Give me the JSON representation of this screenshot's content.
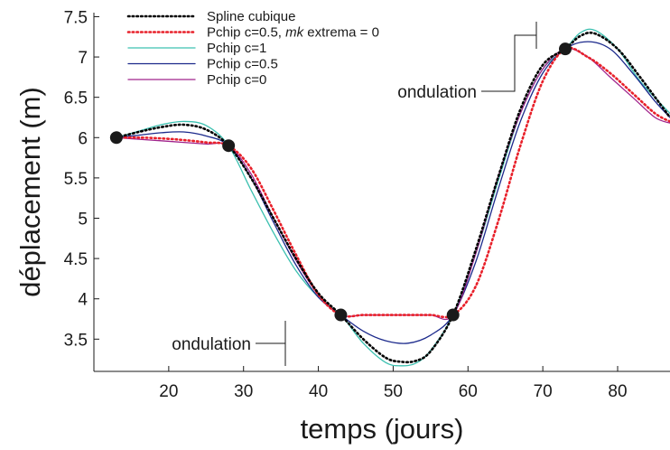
{
  "chart_data": {
    "type": "line",
    "xlabel": "temps (jours)",
    "ylabel": "déplacement (m)",
    "xlim": [
      10,
      87
    ],
    "ylim": [
      3.1,
      7.55
    ],
    "xticks": [
      20,
      30,
      40,
      50,
      60,
      70,
      80
    ],
    "yticks": [
      3.5,
      4,
      4.5,
      5,
      5.5,
      6,
      6.5,
      7,
      7.5
    ],
    "grid": false,
    "legend_position": "top-left",
    "colors": {
      "spline": "#000000",
      "pchip_extrema": "#e8202a",
      "pchip_c1": "#3cc0b0",
      "pchip_c05": "#1c2a8c",
      "pchip_c0": "#a0238c"
    },
    "points": {
      "x": [
        13,
        28,
        43,
        58,
        73
      ],
      "y": [
        6.0,
        5.9,
        3.8,
        3.8,
        7.1
      ]
    },
    "series": [
      {
        "name": "Spline cubique",
        "color": "#000000",
        "dash": "dotted",
        "x": [
          13,
          16,
          19,
          22,
          25,
          28,
          31,
          34,
          37,
          40,
          43,
          46,
          49,
          51,
          53,
          55,
          58,
          61,
          64,
          67,
          70,
          73,
          75,
          77,
          80,
          83,
          87
        ],
        "y": [
          6.0,
          6.07,
          6.13,
          6.16,
          6.1,
          5.9,
          5.5,
          5.0,
          4.5,
          4.07,
          3.8,
          3.5,
          3.27,
          3.22,
          3.23,
          3.35,
          3.8,
          4.6,
          5.5,
          6.35,
          6.9,
          7.1,
          7.26,
          7.29,
          7.1,
          6.75,
          6.25
        ]
      },
      {
        "name": "Pchip c=0.5, m_k extrema = 0",
        "color": "#e8202a",
        "dash": "dotted",
        "x": [
          13,
          16,
          19,
          22,
          25,
          28,
          31,
          34,
          37,
          40,
          43,
          46,
          49,
          52,
          55,
          58,
          61,
          64,
          67,
          70,
          73,
          76,
          79,
          82,
          85,
          87
        ],
        "y": [
          6.0,
          6.0,
          5.99,
          5.97,
          5.94,
          5.9,
          5.62,
          5.1,
          4.55,
          4.05,
          3.8,
          3.8,
          3.8,
          3.8,
          3.8,
          3.8,
          4.15,
          4.95,
          5.9,
          6.7,
          7.1,
          7.0,
          6.8,
          6.55,
          6.3,
          6.2
        ]
      },
      {
        "name": "Pchip c=1",
        "color": "#3cc0b0",
        "dash": "solid",
        "x": [
          13,
          16,
          19,
          22,
          25,
          28,
          31,
          34,
          37,
          40,
          43,
          46,
          49,
          51,
          53,
          55,
          58,
          61,
          64,
          67,
          70,
          73,
          75,
          77,
          80,
          83,
          87
        ],
        "y": [
          6.0,
          6.08,
          6.16,
          6.2,
          6.15,
          5.9,
          5.35,
          4.82,
          4.35,
          4.02,
          3.8,
          3.45,
          3.21,
          3.17,
          3.2,
          3.36,
          3.8,
          4.55,
          5.45,
          6.3,
          6.85,
          7.1,
          7.3,
          7.33,
          7.1,
          6.7,
          6.3
        ]
      },
      {
        "name": "Pchip c=0.5",
        "color": "#1c2a8c",
        "dash": "solid",
        "x": [
          13,
          16,
          19,
          22,
          25,
          28,
          31,
          34,
          37,
          40,
          43,
          46,
          49,
          52,
          55,
          58,
          61,
          64,
          67,
          70,
          73,
          76,
          79,
          82,
          85,
          87
        ],
        "y": [
          6.0,
          6.03,
          6.06,
          6.07,
          6.02,
          5.9,
          5.5,
          4.95,
          4.42,
          4.02,
          3.8,
          3.6,
          3.48,
          3.45,
          3.55,
          3.8,
          4.45,
          5.35,
          6.2,
          6.8,
          7.1,
          7.19,
          7.1,
          6.8,
          6.45,
          6.25
        ]
      },
      {
        "name": "Pchip c=0",
        "color": "#a0238c",
        "dash": "solid",
        "x": [
          13,
          16,
          19,
          22,
          25,
          28,
          31,
          34,
          37,
          40,
          43,
          46,
          49,
          52,
          55,
          58,
          61,
          64,
          67,
          70,
          73,
          76,
          79,
          82,
          85,
          87
        ],
        "y": [
          6.0,
          5.98,
          5.96,
          5.94,
          5.92,
          5.9,
          5.55,
          5.0,
          4.48,
          4.05,
          3.8,
          3.8,
          3.8,
          3.8,
          3.8,
          3.8,
          4.55,
          5.5,
          6.3,
          6.85,
          7.1,
          7.0,
          6.75,
          6.5,
          6.25,
          6.18
        ]
      }
    ],
    "legend": [
      {
        "label": "Spline cubique",
        "color": "#000000",
        "dash": "dotted"
      },
      {
        "label_prefix": "Pchip c=0.5, ",
        "label_italic": "mk",
        "label_suffix": " extrema = 0",
        "color": "#e8202a",
        "dash": "dotted"
      },
      {
        "label": "Pchip c=1",
        "color": "#3cc0b0",
        "dash": "solid"
      },
      {
        "label": "Pchip c=0.5",
        "color": "#1c2a8c",
        "dash": "solid"
      },
      {
        "label": "Pchip c=0",
        "color": "#a0238c",
        "dash": "solid"
      }
    ],
    "annotations": [
      {
        "text": "ondulation"
      },
      {
        "text": "ondulation"
      }
    ]
  }
}
